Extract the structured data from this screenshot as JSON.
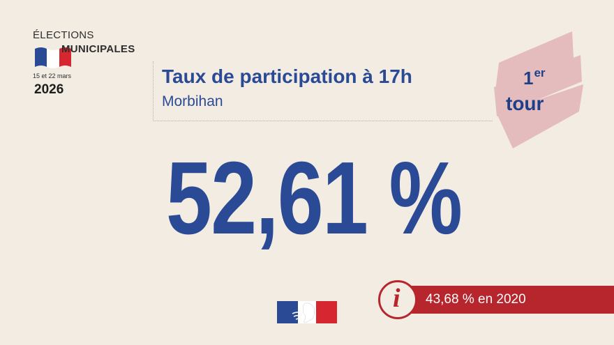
{
  "logo": {
    "line1": "ÉLECTIONS",
    "line2": "MUNICIPALES",
    "dates": "15 et 22 mars",
    "year": "2026",
    "flag_colors": [
      "#2b4a96",
      "#ffffff",
      "#d6262f"
    ]
  },
  "header": {
    "title": "Taux de participation à 17h",
    "subtitle": "Morbihan"
  },
  "tour_badge": {
    "number": "1",
    "suffix": "er",
    "label": "tour",
    "ribbon_color": "#e5bcbe"
  },
  "main": {
    "participation_rate": "52,61 %"
  },
  "info": {
    "icon": "info-icon",
    "text": "43,68 % en 2020",
    "color": "#b8262d"
  },
  "footer": {
    "icon": "republique-francaise-logo"
  },
  "colors": {
    "background": "#f2ece3",
    "accent_blue": "#2b4a96",
    "accent_red": "#b8262d"
  }
}
